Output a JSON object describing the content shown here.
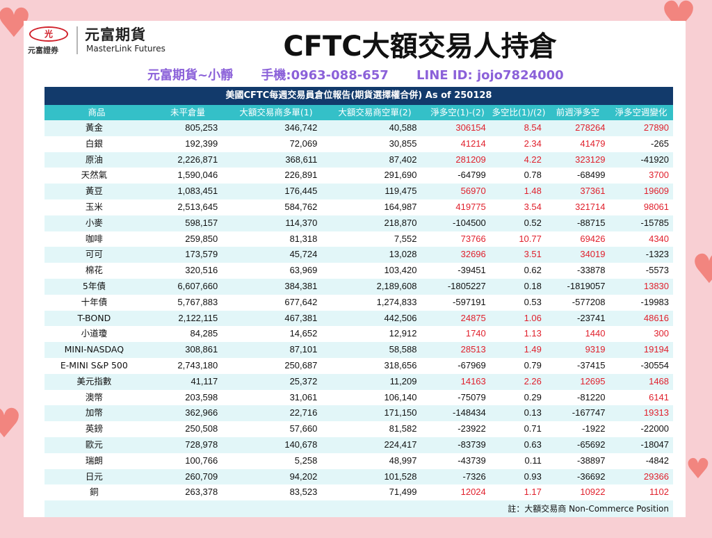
{
  "header": {
    "logo_badge": "光",
    "logo_left_text": "元富證券",
    "logo_cn": "元富期貨",
    "logo_en": "MasterLink Futures",
    "title": "CFTC大額交易人持倉"
  },
  "contact": {
    "name": "元富期貨~小靜",
    "phone": "手機:0963-088-657",
    "line": "LINE ID: jojo7824000"
  },
  "table": {
    "title": "美國CFTC每週交易員倉位報告(期貨選擇權合併) As of  250128",
    "columns": [
      "商品",
      "未平倉量",
      "大額交易商多單(1)",
      "大額交易商空單(2)",
      "淨多空(1)-(2)",
      "多空比(1)/(2)",
      "前週淨多空",
      "淨多空週變化"
    ],
    "rows": [
      [
        "黃金",
        "805,253",
        "346,742",
        "40,588",
        "306154",
        "8.54",
        "278264",
        "27890"
      ],
      [
        "白銀",
        "192,399",
        "72,069",
        "30,855",
        "41214",
        "2.34",
        "41479",
        "-265"
      ],
      [
        "原油",
        "2,226,871",
        "368,611",
        "87,402",
        "281209",
        "4.22",
        "323129",
        "-41920"
      ],
      [
        "天然氣",
        "1,590,046",
        "226,891",
        "291,690",
        "-64799",
        "0.78",
        "-68499",
        "3700"
      ],
      [
        "黃豆",
        "1,083,451",
        "176,445",
        "119,475",
        "56970",
        "1.48",
        "37361",
        "19609"
      ],
      [
        "玉米",
        "2,513,645",
        "584,762",
        "164,987",
        "419775",
        "3.54",
        "321714",
        "98061"
      ],
      [
        "小麥",
        "598,157",
        "114,370",
        "218,870",
        "-104500",
        "0.52",
        "-88715",
        "-15785"
      ],
      [
        "咖啡",
        "259,850",
        "81,318",
        "7,552",
        "73766",
        "10.77",
        "69426",
        "4340"
      ],
      [
        "可可",
        "173,579",
        "45,724",
        "13,028",
        "32696",
        "3.51",
        "34019",
        "-1323"
      ],
      [
        "棉花",
        "320,516",
        "63,969",
        "103,420",
        "-39451",
        "0.62",
        "-33878",
        "-5573"
      ],
      [
        "5年債",
        "6,607,660",
        "384,381",
        "2,189,608",
        "-1805227",
        "0.18",
        "-1819057",
        "13830"
      ],
      [
        "十年債",
        "5,767,883",
        "677,642",
        "1,274,833",
        "-597191",
        "0.53",
        "-577208",
        "-19983"
      ],
      [
        "T-BOND",
        "2,122,115",
        "467,381",
        "442,506",
        "24875",
        "1.06",
        "-23741",
        "48616"
      ],
      [
        "小道瓊",
        "84,285",
        "14,652",
        "12,912",
        "1740",
        "1.13",
        "1440",
        "300"
      ],
      [
        "MINI-NASDAQ",
        "308,861",
        "87,101",
        "58,588",
        "28513",
        "1.49",
        "9319",
        "19194"
      ],
      [
        "E-MINI S&P 500",
        "2,743,180",
        "250,687",
        "318,656",
        "-67969",
        "0.79",
        "-37415",
        "-30554"
      ],
      [
        "美元指數",
        "41,117",
        "25,372",
        "11,209",
        "14163",
        "2.26",
        "12695",
        "1468"
      ],
      [
        "澳幣",
        "203,598",
        "31,061",
        "106,140",
        "-75079",
        "0.29",
        "-81220",
        "6141"
      ],
      [
        "加幣",
        "362,966",
        "22,716",
        "171,150",
        "-148434",
        "0.13",
        "-167747",
        "19313"
      ],
      [
        "英鎊",
        "250,508",
        "57,660",
        "81,582",
        "-23922",
        "0.71",
        "-1922",
        "-22000"
      ],
      [
        "歐元",
        "728,978",
        "140,678",
        "224,417",
        "-83739",
        "0.63",
        "-65692",
        "-18047"
      ],
      [
        "瑞朗",
        "100,766",
        "5,258",
        "48,997",
        "-43739",
        "0.11",
        "-38897",
        "-4842"
      ],
      [
        "日元",
        "260,709",
        "94,202",
        "101,528",
        "-7326",
        "0.93",
        "-36692",
        "29366"
      ],
      [
        "銅",
        "263,378",
        "83,523",
        "71,499",
        "12024",
        "1.17",
        "10922",
        "1102"
      ]
    ],
    "footer": "註：大額交易商 Non-Commerce Position"
  },
  "colors": {
    "background": "#f8cfd3",
    "table_title_bg": "#123a6b",
    "header_bg": "#34c0c8",
    "odd_row_bg": "#e2f6f8",
    "positive": "#e0202c",
    "contact": "#8b61d9",
    "heart": "#f2857f"
  }
}
